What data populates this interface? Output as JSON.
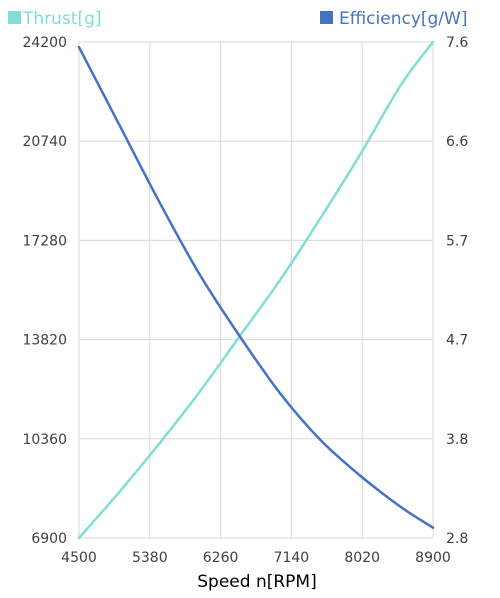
{
  "chart_data": {
    "type": "line",
    "xlabel": "Speed n[RPM]",
    "xlim": [
      4500,
      8900
    ],
    "xticks": [
      4500,
      5380,
      6260,
      7140,
      8020,
      8900
    ],
    "y_left": {
      "lim": [
        6900,
        24200
      ],
      "ticks": [
        6900,
        10360,
        13820,
        17280,
        20740,
        24200
      ]
    },
    "y_right": {
      "lim": [
        2.8,
        7.6
      ],
      "ticks": [
        "2.8",
        "3.8",
        "4.7",
        "5.7",
        "6.6",
        "7.6"
      ]
    },
    "grid": true,
    "legend_placement": "top",
    "series": [
      {
        "name": "Thrust[g]",
        "axis": "left",
        "color": "#7fded6",
        "x": [
          4500,
          5000,
          5500,
          6000,
          6500,
          7000,
          7500,
          8000,
          8500,
          8900
        ],
        "y": [
          6900,
          8500,
          10200,
          12000,
          13950,
          15900,
          18050,
          20300,
          22700,
          24200
        ]
      },
      {
        "name": "Efficiency[g/W]",
        "axis": "right",
        "color": "#4472c4",
        "x": [
          4500,
          5000,
          5500,
          6000,
          6500,
          7000,
          7500,
          8000,
          8500,
          8900
        ],
        "y": [
          7.55,
          6.8,
          6.05,
          5.35,
          4.75,
          4.2,
          3.75,
          3.4,
          3.1,
          2.9
        ]
      }
    ]
  }
}
